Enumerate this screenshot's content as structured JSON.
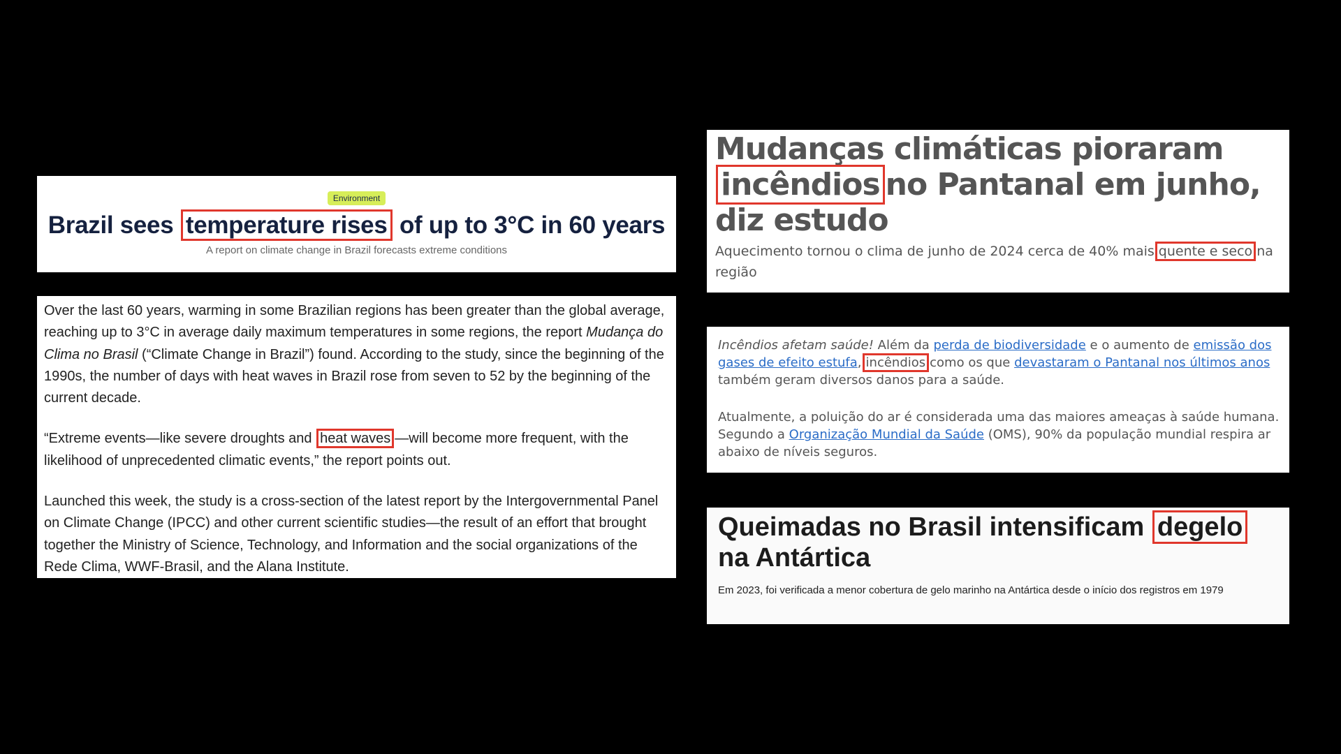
{
  "en_headline": {
    "badge": "Environment",
    "title_before": "Brazil sees",
    "title_highlight": "temperature rises",
    "title_after": "of up to 3°C in 60 years",
    "subtitle": "A report on climate change in Brazil forecasts extreme conditions"
  },
  "en_article": {
    "p1_a": "Over the last 60 years, warming in some Brazilian regions has been greater than the global average, reaching up to 3°C in average daily maximum temperatures in some regions, the report ",
    "p1_italic": "Mudança do Clima no Brasil",
    "p1_b": " (“Climate Change in Brazil”) found. According to the study, since the beginning of the 1990s, the number of days with heat waves in Brazil rose from seven to 52 by the beginning of the current decade.",
    "p2_a": "“Extreme events—like severe droughts and",
    "p2_highlight": "heat waves",
    "p2_b": "—will become more frequent, with the likelihood of unprecedented climatic events,” the report points out.",
    "p3": "Launched this week, the study is a cross-section of the latest report by the Intergovernmental Panel on Climate Change (IPCC) and other current scientific studies—the result of an effort that brought together the Ministry of Science, Technology, and Information and the social organizations of the Rede Clima, WWF-Brasil, and the Alana Institute."
  },
  "pt_pantanal": {
    "title_before": "Mudanças climáticas pioraram",
    "title_highlight": "incêndios",
    "title_after": "no Pantanal em junho, diz estudo",
    "subtitle_before": "Aquecimento tornou o clima de junho de 2024 cerca de 40% mais",
    "subtitle_highlight": "quente e seco",
    "subtitle_after": "na região"
  },
  "pt_body": {
    "lead": "Incêndios afetam saúde!",
    "t1": " Além da ",
    "link1": "perda de biodiversidade",
    "t2": " e o aumento de ",
    "link2": "emissão dos gases de efeito estufa",
    "t3": ",",
    "highlight": "incêndios",
    "t4": "como os que ",
    "link3": "devastaram o Pantanal nos últimos anos",
    "t5": " também geram diversos danos para a saúde.",
    "p2_a": "Atualmente, a poluição do ar é considerada uma das maiores ameaças à saúde humana. Segundo a ",
    "p2_link": "Organização Mundial da Saúde",
    "p2_b": " (OMS), 90% da população mundial respira ar abaixo de níveis seguros."
  },
  "pt_antartica": {
    "title_before": "Queimadas no Brasil intensificam",
    "title_highlight": "degelo",
    "title_after": "na Antártica",
    "subtitle": "Em 2023, foi verificada a menor cobertura de gelo marinho na Antártica desde o início dos registros em 1979"
  },
  "colors": {
    "highlight_box": "#e0372c",
    "badge_bg": "#d7ee59",
    "link": "#2a6cc7"
  }
}
